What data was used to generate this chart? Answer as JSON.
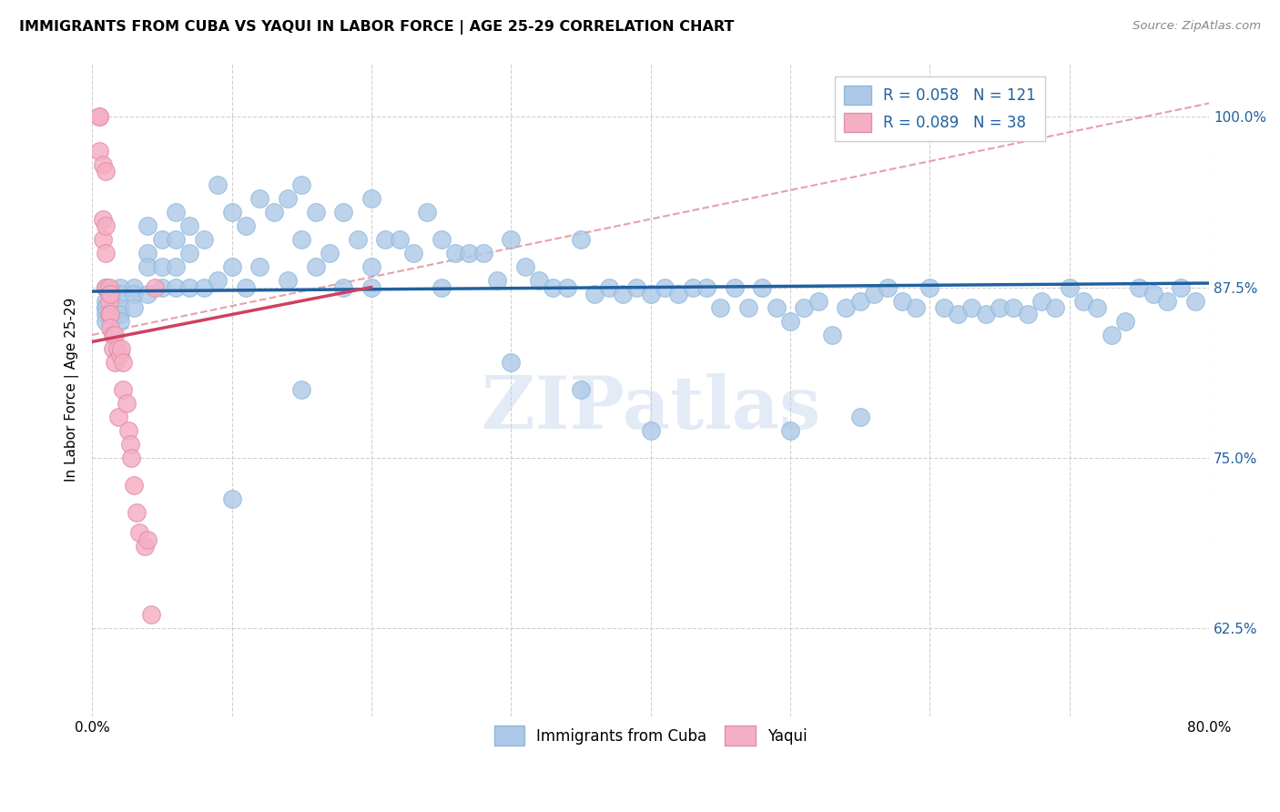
{
  "title": "IMMIGRANTS FROM CUBA VS YAQUI IN LABOR FORCE | AGE 25-29 CORRELATION CHART",
  "source": "Source: ZipAtlas.com",
  "ylabel": "In Labor Force | Age 25-29",
  "xlim": [
    0.0,
    0.8
  ],
  "ylim": [
    0.56,
    1.04
  ],
  "xticks": [
    0.0,
    0.1,
    0.2,
    0.3,
    0.4,
    0.5,
    0.6,
    0.7,
    0.8
  ],
  "xticklabels": [
    "0.0%",
    "",
    "",
    "",
    "",
    "",
    "",
    "",
    "80.0%"
  ],
  "ytick_positions": [
    0.625,
    0.75,
    0.875,
    1.0
  ],
  "ytick_labels": [
    "62.5%",
    "75.0%",
    "87.5%",
    "100.0%"
  ],
  "watermark": "ZIPatlas",
  "legend_blue_label": "Immigrants from Cuba",
  "legend_pink_label": "Yaqui",
  "blue_R": "0.058",
  "blue_N": "121",
  "pink_R": "0.089",
  "pink_N": "38",
  "blue_color": "#adc8e8",
  "pink_color": "#f5afc4",
  "blue_line_color": "#2060a0",
  "pink_line_color": "#d04060",
  "dashed_color": "#e08898",
  "blue_scatter_x": [
    0.01,
    0.01,
    0.01,
    0.01,
    0.01,
    0.01,
    0.01,
    0.02,
    0.02,
    0.02,
    0.02,
    0.02,
    0.03,
    0.03,
    0.03,
    0.04,
    0.04,
    0.04,
    0.04,
    0.05,
    0.05,
    0.05,
    0.06,
    0.06,
    0.06,
    0.06,
    0.07,
    0.07,
    0.07,
    0.08,
    0.08,
    0.09,
    0.09,
    0.1,
    0.1,
    0.11,
    0.11,
    0.12,
    0.12,
    0.13,
    0.14,
    0.14,
    0.15,
    0.15,
    0.16,
    0.16,
    0.17,
    0.18,
    0.18,
    0.19,
    0.2,
    0.2,
    0.21,
    0.22,
    0.23,
    0.24,
    0.25,
    0.26,
    0.27,
    0.28,
    0.29,
    0.3,
    0.31,
    0.32,
    0.33,
    0.34,
    0.35,
    0.36,
    0.37,
    0.38,
    0.39,
    0.4,
    0.41,
    0.42,
    0.43,
    0.44,
    0.45,
    0.46,
    0.47,
    0.48,
    0.49,
    0.5,
    0.51,
    0.52,
    0.53,
    0.54,
    0.55,
    0.56,
    0.57,
    0.58,
    0.59,
    0.6,
    0.61,
    0.62,
    0.63,
    0.64,
    0.65,
    0.66,
    0.67,
    0.68,
    0.69,
    0.7,
    0.71,
    0.72,
    0.73,
    0.74,
    0.75,
    0.76,
    0.77,
    0.78,
    0.79,
    0.5,
    0.55,
    0.3,
    0.35,
    0.4,
    0.25,
    0.2,
    0.15,
    0.1
  ],
  "blue_scatter_y": [
    0.875,
    0.875,
    0.865,
    0.86,
    0.86,
    0.855,
    0.85,
    0.875,
    0.87,
    0.86,
    0.855,
    0.85,
    0.875,
    0.87,
    0.86,
    0.92,
    0.9,
    0.89,
    0.87,
    0.91,
    0.89,
    0.875,
    0.93,
    0.91,
    0.89,
    0.875,
    0.92,
    0.9,
    0.875,
    0.91,
    0.875,
    0.95,
    0.88,
    0.93,
    0.89,
    0.92,
    0.875,
    0.94,
    0.89,
    0.93,
    0.94,
    0.88,
    0.95,
    0.91,
    0.93,
    0.89,
    0.9,
    0.93,
    0.875,
    0.91,
    0.94,
    0.89,
    0.91,
    0.91,
    0.9,
    0.93,
    0.91,
    0.9,
    0.9,
    0.9,
    0.88,
    0.91,
    0.89,
    0.88,
    0.875,
    0.875,
    0.91,
    0.87,
    0.875,
    0.87,
    0.875,
    0.87,
    0.875,
    0.87,
    0.875,
    0.875,
    0.86,
    0.875,
    0.86,
    0.875,
    0.86,
    0.85,
    0.86,
    0.865,
    0.84,
    0.86,
    0.865,
    0.87,
    0.875,
    0.865,
    0.86,
    0.875,
    0.86,
    0.855,
    0.86,
    0.855,
    0.86,
    0.86,
    0.855,
    0.865,
    0.86,
    0.875,
    0.865,
    0.86,
    0.84,
    0.85,
    0.875,
    0.87,
    0.865,
    0.875,
    0.865,
    0.77,
    0.78,
    0.82,
    0.8,
    0.77,
    0.875,
    0.875,
    0.8,
    0.72
  ],
  "pink_scatter_x": [
    0.005,
    0.005,
    0.005,
    0.008,
    0.008,
    0.008,
    0.01,
    0.01,
    0.01,
    0.01,
    0.012,
    0.012,
    0.012,
    0.012,
    0.013,
    0.013,
    0.013,
    0.015,
    0.015,
    0.016,
    0.016,
    0.018,
    0.019,
    0.02,
    0.021,
    0.022,
    0.022,
    0.025,
    0.026,
    0.027,
    0.028,
    0.03,
    0.032,
    0.034,
    0.038,
    0.04,
    0.042,
    0.045
  ],
  "pink_scatter_y": [
    1.0,
    1.0,
    0.975,
    0.965,
    0.925,
    0.91,
    0.96,
    0.92,
    0.9,
    0.875,
    0.875,
    0.87,
    0.865,
    0.855,
    0.87,
    0.855,
    0.845,
    0.84,
    0.83,
    0.84,
    0.82,
    0.83,
    0.78,
    0.825,
    0.83,
    0.82,
    0.8,
    0.79,
    0.77,
    0.76,
    0.75,
    0.73,
    0.71,
    0.695,
    0.685,
    0.69,
    0.635,
    0.875
  ],
  "blue_trend_x": [
    0.0,
    0.8
  ],
  "blue_trend_y": [
    0.872,
    0.878
  ],
  "pink_trend_x": [
    0.0,
    0.2
  ],
  "pink_trend_y": [
    0.835,
    0.875
  ],
  "dashed_trend_x": [
    0.0,
    0.8
  ],
  "dashed_trend_y": [
    0.84,
    1.01
  ]
}
